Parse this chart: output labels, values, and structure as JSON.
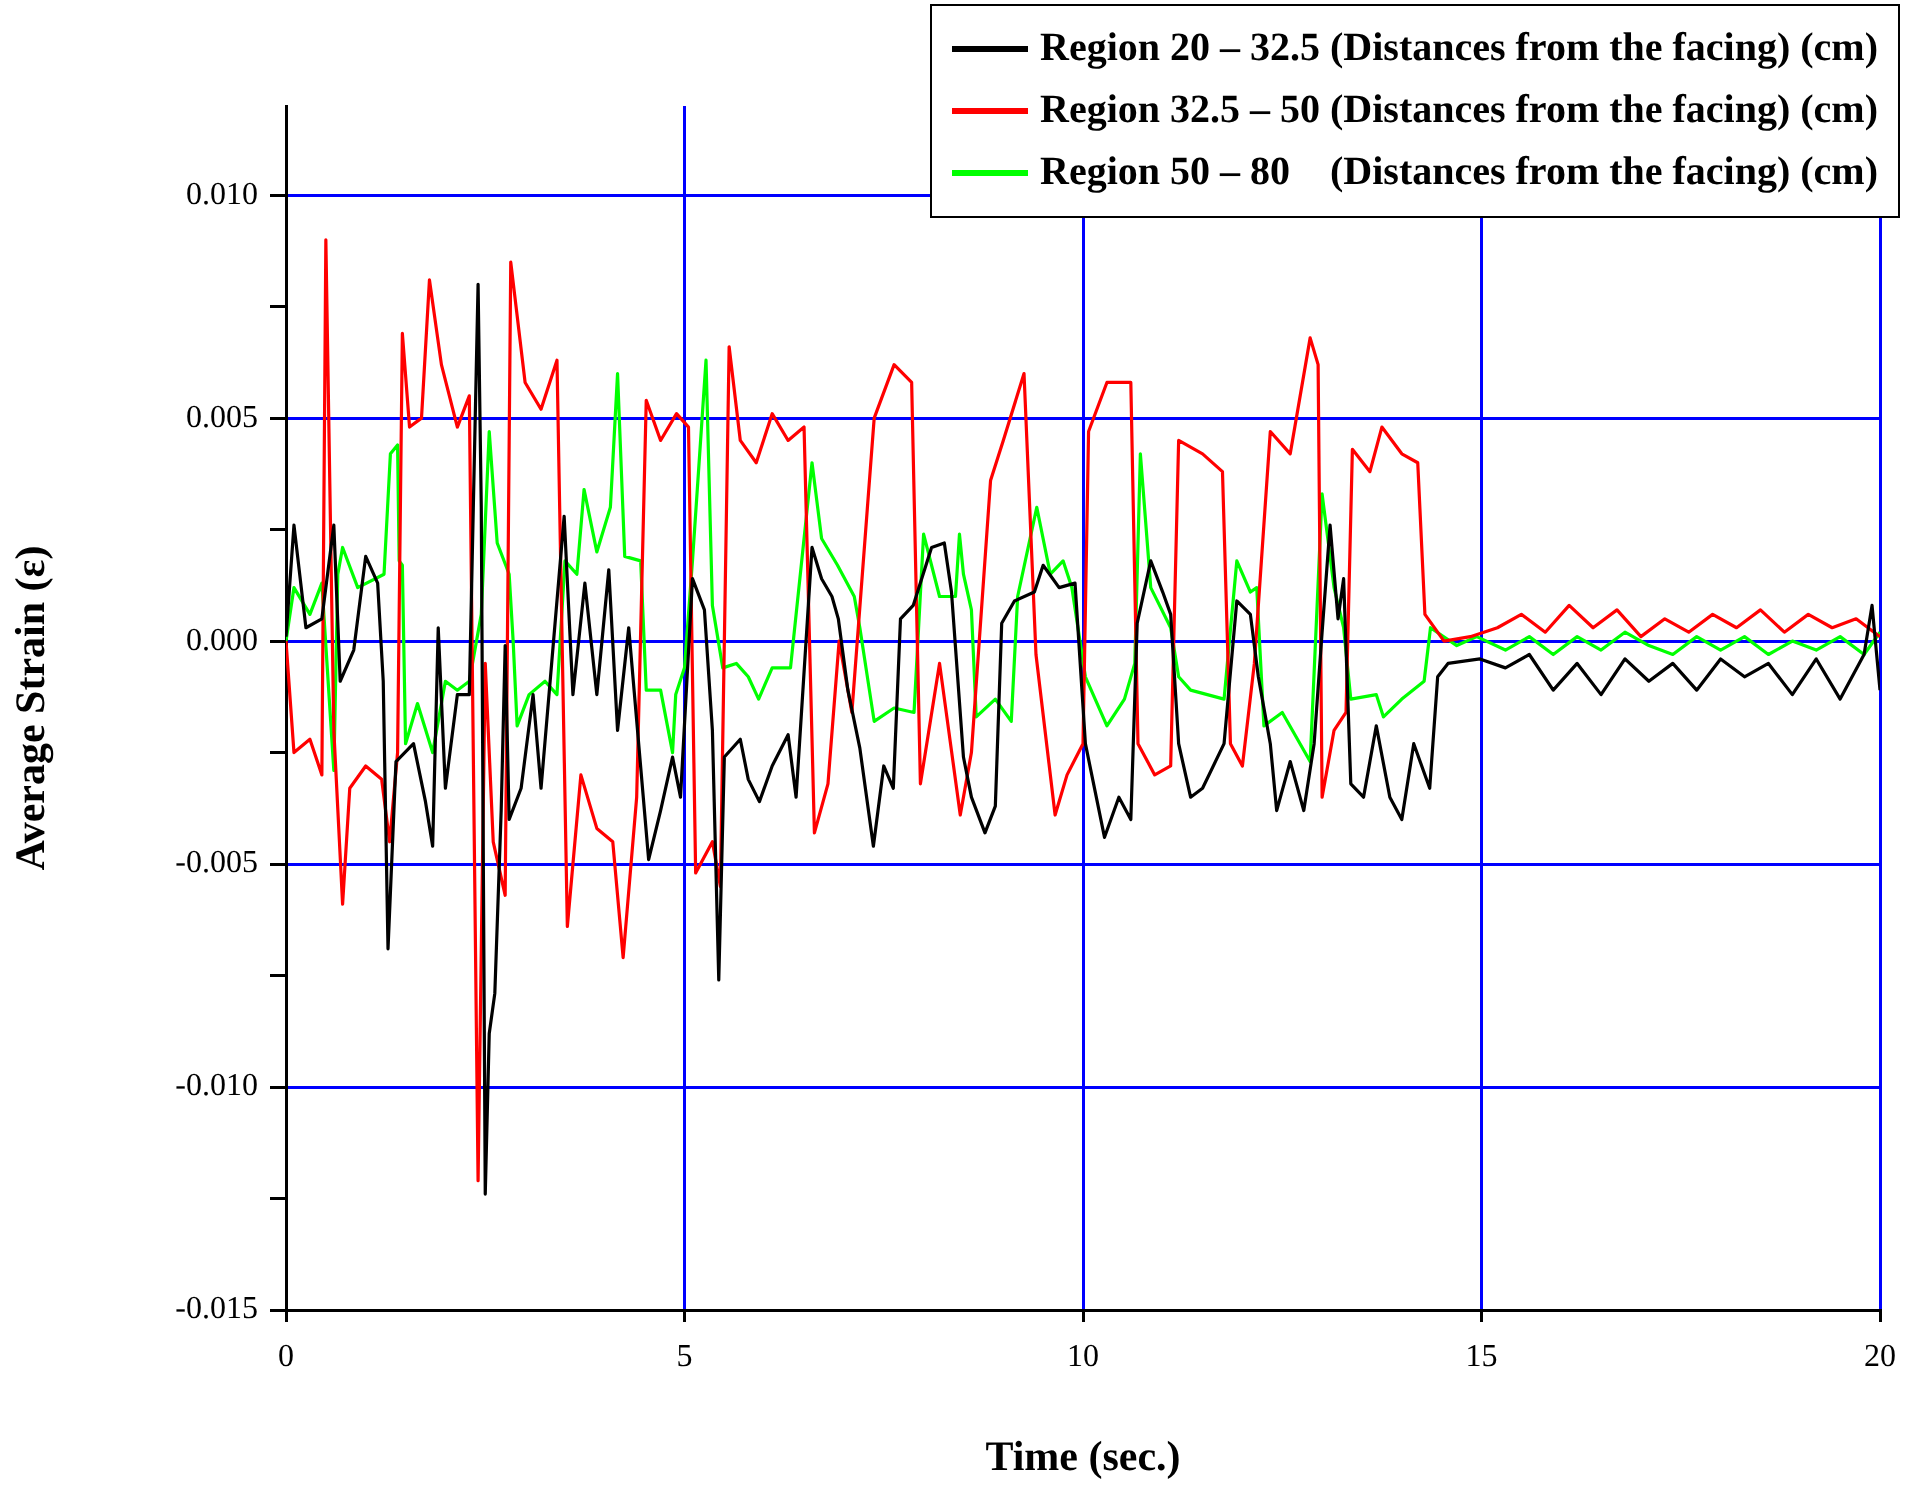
{
  "chart_data": {
    "type": "line",
    "xlabel": "Time (sec.)",
    "ylabel": "Average Strain (ε)",
    "xlim": [
      0,
      20
    ],
    "xticks": [
      0,
      5,
      10,
      15,
      20
    ],
    "ylim": [
      -0.015,
      0.012
    ],
    "yticks": [
      {
        "value": -0.015,
        "label": "-0.015"
      },
      {
        "value": -0.0125,
        "label": null
      },
      {
        "value": -0.01,
        "label": "-0.010"
      },
      {
        "value": -0.0075,
        "label": null
      },
      {
        "value": -0.005,
        "label": "-0.005"
      },
      {
        "value": -0.0025,
        "label": null
      },
      {
        "value": 0,
        "label": "0.000"
      },
      {
        "value": 0.0025,
        "label": null
      },
      {
        "value": 0.005,
        "label": "0.005"
      },
      {
        "value": 0.0075,
        "label": null
      },
      {
        "value": 0.01,
        "label": "0.010"
      }
    ],
    "grid": true,
    "legend": "top right",
    "marker": "none",
    "line_style": "solid",
    "series": [
      {
        "name": "Region 20 – 32.5 (Distances from the facing) (cm)",
        "color": "#000000",
        "x": [
          0,
          0.1,
          0.25,
          0.45,
          0.6,
          0.68,
          0.85,
          1.0,
          1.15,
          1.22,
          1.28,
          1.38,
          1.6,
          1.75,
          1.84,
          1.91,
          2.0,
          2.15,
          2.3,
          2.41,
          2.45,
          2.5,
          2.55,
          2.62,
          2.7,
          2.75,
          2.8,
          2.95,
          3.1,
          3.2,
          3.49,
          3.6,
          3.75,
          3.9,
          4.05,
          4.16,
          4.3,
          4.55,
          4.7,
          4.85,
          4.95,
          5.1,
          5.25,
          5.35,
          5.43,
          5.5,
          5.7,
          5.8,
          5.94,
          6.1,
          6.3,
          6.4,
          6.6,
          6.72,
          6.85,
          6.93,
          7.05,
          7.2,
          7.37,
          7.5,
          7.62,
          7.71,
          7.87,
          8.1,
          8.26,
          8.35,
          8.5,
          8.6,
          8.77,
          8.9,
          8.98,
          9.14,
          9.39,
          9.5,
          9.7,
          9.9,
          10.03,
          10.27,
          10.45,
          10.6,
          10.68,
          10.85,
          11.0,
          11.1,
          11.2,
          11.35,
          11.5,
          11.77,
          11.93,
          12.1,
          12.2,
          12.35,
          12.43,
          12.6,
          12.77,
          12.9,
          13.0,
          13.1,
          13.2,
          13.27,
          13.36,
          13.52,
          13.68,
          13.85,
          14.0,
          14.15,
          14.35,
          14.45,
          14.58,
          14.98,
          15.3,
          15.6,
          15.9,
          16.2,
          16.5,
          16.8,
          17.1,
          17.4,
          17.7,
          18.0,
          18.3,
          18.6,
          18.9,
          19.2,
          19.5,
          19.8,
          19.9,
          20
        ],
        "values": [
          0.0001,
          0.0026,
          0.0003,
          0.0005,
          0.0026,
          -0.0009,
          -0.0002,
          0.0019,
          0.0013,
          -0.0009,
          -0.0069,
          -0.0027,
          -0.0023,
          -0.0036,
          -0.0046,
          0.0003,
          -0.0033,
          -0.0012,
          -0.0012,
          0.008,
          0.003,
          -0.0124,
          -0.0088,
          -0.0079,
          -0.0038,
          -0.0001,
          -0.004,
          -0.0033,
          -0.0012,
          -0.0033,
          0.0028,
          -0.0012,
          0.0013,
          -0.0012,
          0.0016,
          -0.002,
          0.0003,
          -0.0049,
          -0.0038,
          -0.0026,
          -0.0035,
          0.0014,
          0.0007,
          -0.002,
          -0.0076,
          -0.0026,
          -0.0022,
          -0.0031,
          -0.0036,
          -0.0028,
          -0.0021,
          -0.0035,
          0.0021,
          0.0014,
          0.001,
          0.0005,
          -0.0011,
          -0.0024,
          -0.0046,
          -0.0028,
          -0.0033,
          0.0005,
          0.0008,
          0.0021,
          0.0022,
          0.0011,
          -0.0026,
          -0.0035,
          -0.0043,
          -0.0037,
          0.0004,
          0.0009,
          0.0011,
          0.0017,
          0.0012,
          0.0013,
          -0.0023,
          -0.0044,
          -0.0035,
          -0.004,
          0.0004,
          0.0018,
          0.0011,
          0.0006,
          -0.0023,
          -0.0035,
          -0.0033,
          -0.0023,
          0.0009,
          0.0006,
          -0.0008,
          -0.0023,
          -0.0038,
          -0.0027,
          -0.0038,
          -0.0023,
          0.0002,
          0.0026,
          0.0005,
          0.0014,
          -0.0032,
          -0.0035,
          -0.0019,
          -0.0035,
          -0.004,
          -0.0023,
          -0.0033,
          -0.0008,
          -0.0005,
          -0.0004,
          -0.0006,
          -0.0003,
          -0.0011,
          -0.0005,
          -0.0012,
          -0.0004,
          -0.0009,
          -0.0005,
          -0.0011,
          -0.0004,
          -0.0008,
          -0.0005,
          -0.0012,
          -0.0004,
          -0.0013,
          -0.0003,
          0.0008,
          -0.0011
        ]
      },
      {
        "name": "Region 32.5 – 50 (Distances from the facing) (cm)",
        "color": "#ff0000",
        "x": [
          0,
          0.1,
          0.3,
          0.45,
          0.5,
          0.6,
          0.71,
          0.8,
          1.0,
          1.2,
          1.3,
          1.4,
          1.46,
          1.55,
          1.7,
          1.8,
          1.95,
          2.15,
          2.3,
          2.41,
          2.5,
          2.6,
          2.75,
          2.82,
          3.0,
          3.2,
          3.4,
          3.53,
          3.7,
          3.9,
          4.1,
          4.23,
          4.4,
          4.52,
          4.7,
          4.9,
          5.05,
          5.14,
          5.35,
          5.45,
          5.56,
          5.7,
          5.9,
          6.1,
          6.3,
          6.5,
          6.63,
          6.8,
          6.94,
          7.1,
          7.38,
          7.63,
          7.85,
          7.96,
          8.2,
          8.46,
          8.6,
          8.84,
          9.0,
          9.26,
          9.41,
          9.65,
          9.8,
          10.0,
          10.07,
          10.3,
          10.6,
          10.69,
          10.9,
          11.1,
          11.2,
          11.5,
          11.75,
          11.85,
          12.0,
          12.15,
          12.35,
          12.6,
          12.85,
          12.95,
          13.0,
          13.15,
          13.3,
          13.38,
          13.6,
          13.75,
          14.0,
          14.2,
          14.29,
          14.53,
          14.86,
          15.2,
          15.5,
          15.8,
          16.1,
          16.4,
          16.7,
          17.0,
          17.3,
          17.6,
          17.9,
          18.2,
          18.5,
          18.8,
          19.1,
          19.4,
          19.7,
          20
        ],
        "values": [
          0,
          -0.0025,
          -0.0022,
          -0.003,
          0.009,
          -0.002,
          -0.0059,
          -0.0033,
          -0.0028,
          -0.0031,
          -0.0045,
          -0.0025,
          0.0069,
          0.0048,
          0.005,
          0.0081,
          0.0062,
          0.0048,
          0.0055,
          -0.0121,
          -0.0005,
          -0.0045,
          -0.0057,
          0.0085,
          0.0058,
          0.0052,
          0.0063,
          -0.0064,
          -0.003,
          -0.0042,
          -0.0045,
          -0.0071,
          -0.0035,
          0.0054,
          0.0045,
          0.0051,
          0.0048,
          -0.0052,
          -0.0045,
          -0.0055,
          0.0066,
          0.0045,
          0.004,
          0.0051,
          0.0045,
          0.0048,
          -0.0043,
          -0.0032,
          0,
          -0.0016,
          0.005,
          0.0062,
          0.0058,
          -0.0032,
          -0.0005,
          -0.0039,
          -0.0025,
          0.0036,
          0.0045,
          0.006,
          -0.0003,
          -0.0039,
          -0.003,
          -0.0023,
          0.0047,
          0.0058,
          0.0058,
          -0.0023,
          -0.003,
          -0.0028,
          0.0045,
          0.0042,
          0.0038,
          -0.0023,
          -0.0028,
          -0.0005,
          0.0047,
          0.0042,
          0.0068,
          0.0062,
          -0.0035,
          -0.002,
          -0.0016,
          0.0043,
          0.0038,
          0.0048,
          0.0042,
          0.004,
          0.0006,
          0,
          0.0001,
          0.0003,
          0.0006,
          0.0002,
          0.0008,
          0.0003,
          0.0007,
          0.0001,
          0.0005,
          0.0002,
          0.0006,
          0.0003,
          0.0007,
          0.0002,
          0.0006,
          0.0003,
          0.0005,
          0.0001
        ]
      },
      {
        "name": "Region 50 – 80    (Distances from the facing) (cm)",
        "color": "#00ff00",
        "x": [
          0,
          0.1,
          0.3,
          0.45,
          0.6,
          0.65,
          0.71,
          0.9,
          1.23,
          1.31,
          1.4,
          1.42,
          1.46,
          1.5,
          1.65,
          1.84,
          2.0,
          2.15,
          2.3,
          2.45,
          2.55,
          2.65,
          2.8,
          2.85,
          2.9,
          3.05,
          3.25,
          3.4,
          3.5,
          3.65,
          3.74,
          3.9,
          4.07,
          4.16,
          4.25,
          4.45,
          4.52,
          4.7,
          4.85,
          4.89,
          5.0,
          5.1,
          5.27,
          5.35,
          5.48,
          5.65,
          5.8,
          5.93,
          6.1,
          6.33,
          6.6,
          6.72,
          6.92,
          7.13,
          7.2,
          7.38,
          7.63,
          7.88,
          8.0,
          8.2,
          8.4,
          8.45,
          8.5,
          8.6,
          8.66,
          8.9,
          9.1,
          9.18,
          9.42,
          9.59,
          9.75,
          9.86,
          10.03,
          10.3,
          10.52,
          10.65,
          10.72,
          10.85,
          11.1,
          11.2,
          11.35,
          11.77,
          11.93,
          12.1,
          12.18,
          12.27,
          12.5,
          12.85,
          13.0,
          13.15,
          13.27,
          13.36,
          13.68,
          13.77,
          14.0,
          14.28,
          14.36,
          14.69,
          14.94,
          15.3,
          15.6,
          15.9,
          16.2,
          16.5,
          16.8,
          17.1,
          17.4,
          17.7,
          18.0,
          18.3,
          18.6,
          18.9,
          19.2,
          19.5,
          19.8,
          20
        ],
        "values": [
          0,
          0.0012,
          0.0006,
          0.0013,
          -0.0029,
          0.0015,
          0.0021,
          0.0012,
          0.0015,
          0.0042,
          0.0044,
          0.0018,
          0.0017,
          -0.0023,
          -0.0014,
          -0.0025,
          -0.0009,
          -0.0011,
          -0.0009,
          0.0006,
          0.0047,
          0.0022,
          0.0015,
          0,
          -0.0019,
          -0.0012,
          -0.0009,
          -0.0012,
          0.0018,
          0.0015,
          0.0034,
          0.002,
          0.003,
          0.006,
          0.0019,
          0.0018,
          -0.0011,
          -0.0011,
          -0.0025,
          -0.0012,
          -0.0006,
          0.0018,
          0.0063,
          0.0008,
          -0.0006,
          -0.0005,
          -0.0008,
          -0.0013,
          -0.0006,
          -0.0006,
          0.004,
          0.0023,
          0.0017,
          0.001,
          0.0003,
          -0.0018,
          -0.0015,
          -0.0016,
          0.0024,
          0.001,
          0.001,
          0.0024,
          0.0015,
          0.0007,
          -0.0017,
          -0.0013,
          -0.0018,
          0.001,
          0.003,
          0.0015,
          0.0018,
          0.0012,
          -0.0008,
          -0.0019,
          -0.0013,
          -0.0005,
          0.0042,
          0.0012,
          0.0003,
          -0.0008,
          -0.0011,
          -0.0013,
          0.0018,
          0.0011,
          0.0012,
          -0.0019,
          -0.0016,
          -0.0027,
          0.0033,
          0.0012,
          0.0003,
          -0.0013,
          -0.0012,
          -0.0017,
          -0.0013,
          -0.0009,
          0.0003,
          -0.0001,
          0.0001,
          -0.0002,
          0.0001,
          -0.0003,
          0.0001,
          -0.0002,
          0.0002,
          -0.0001,
          -0.0003,
          0.0001,
          -0.0002,
          0.0001,
          -0.0003,
          0,
          -0.0002,
          0.0001,
          -0.0003,
          0.0002
        ]
      }
    ]
  }
}
